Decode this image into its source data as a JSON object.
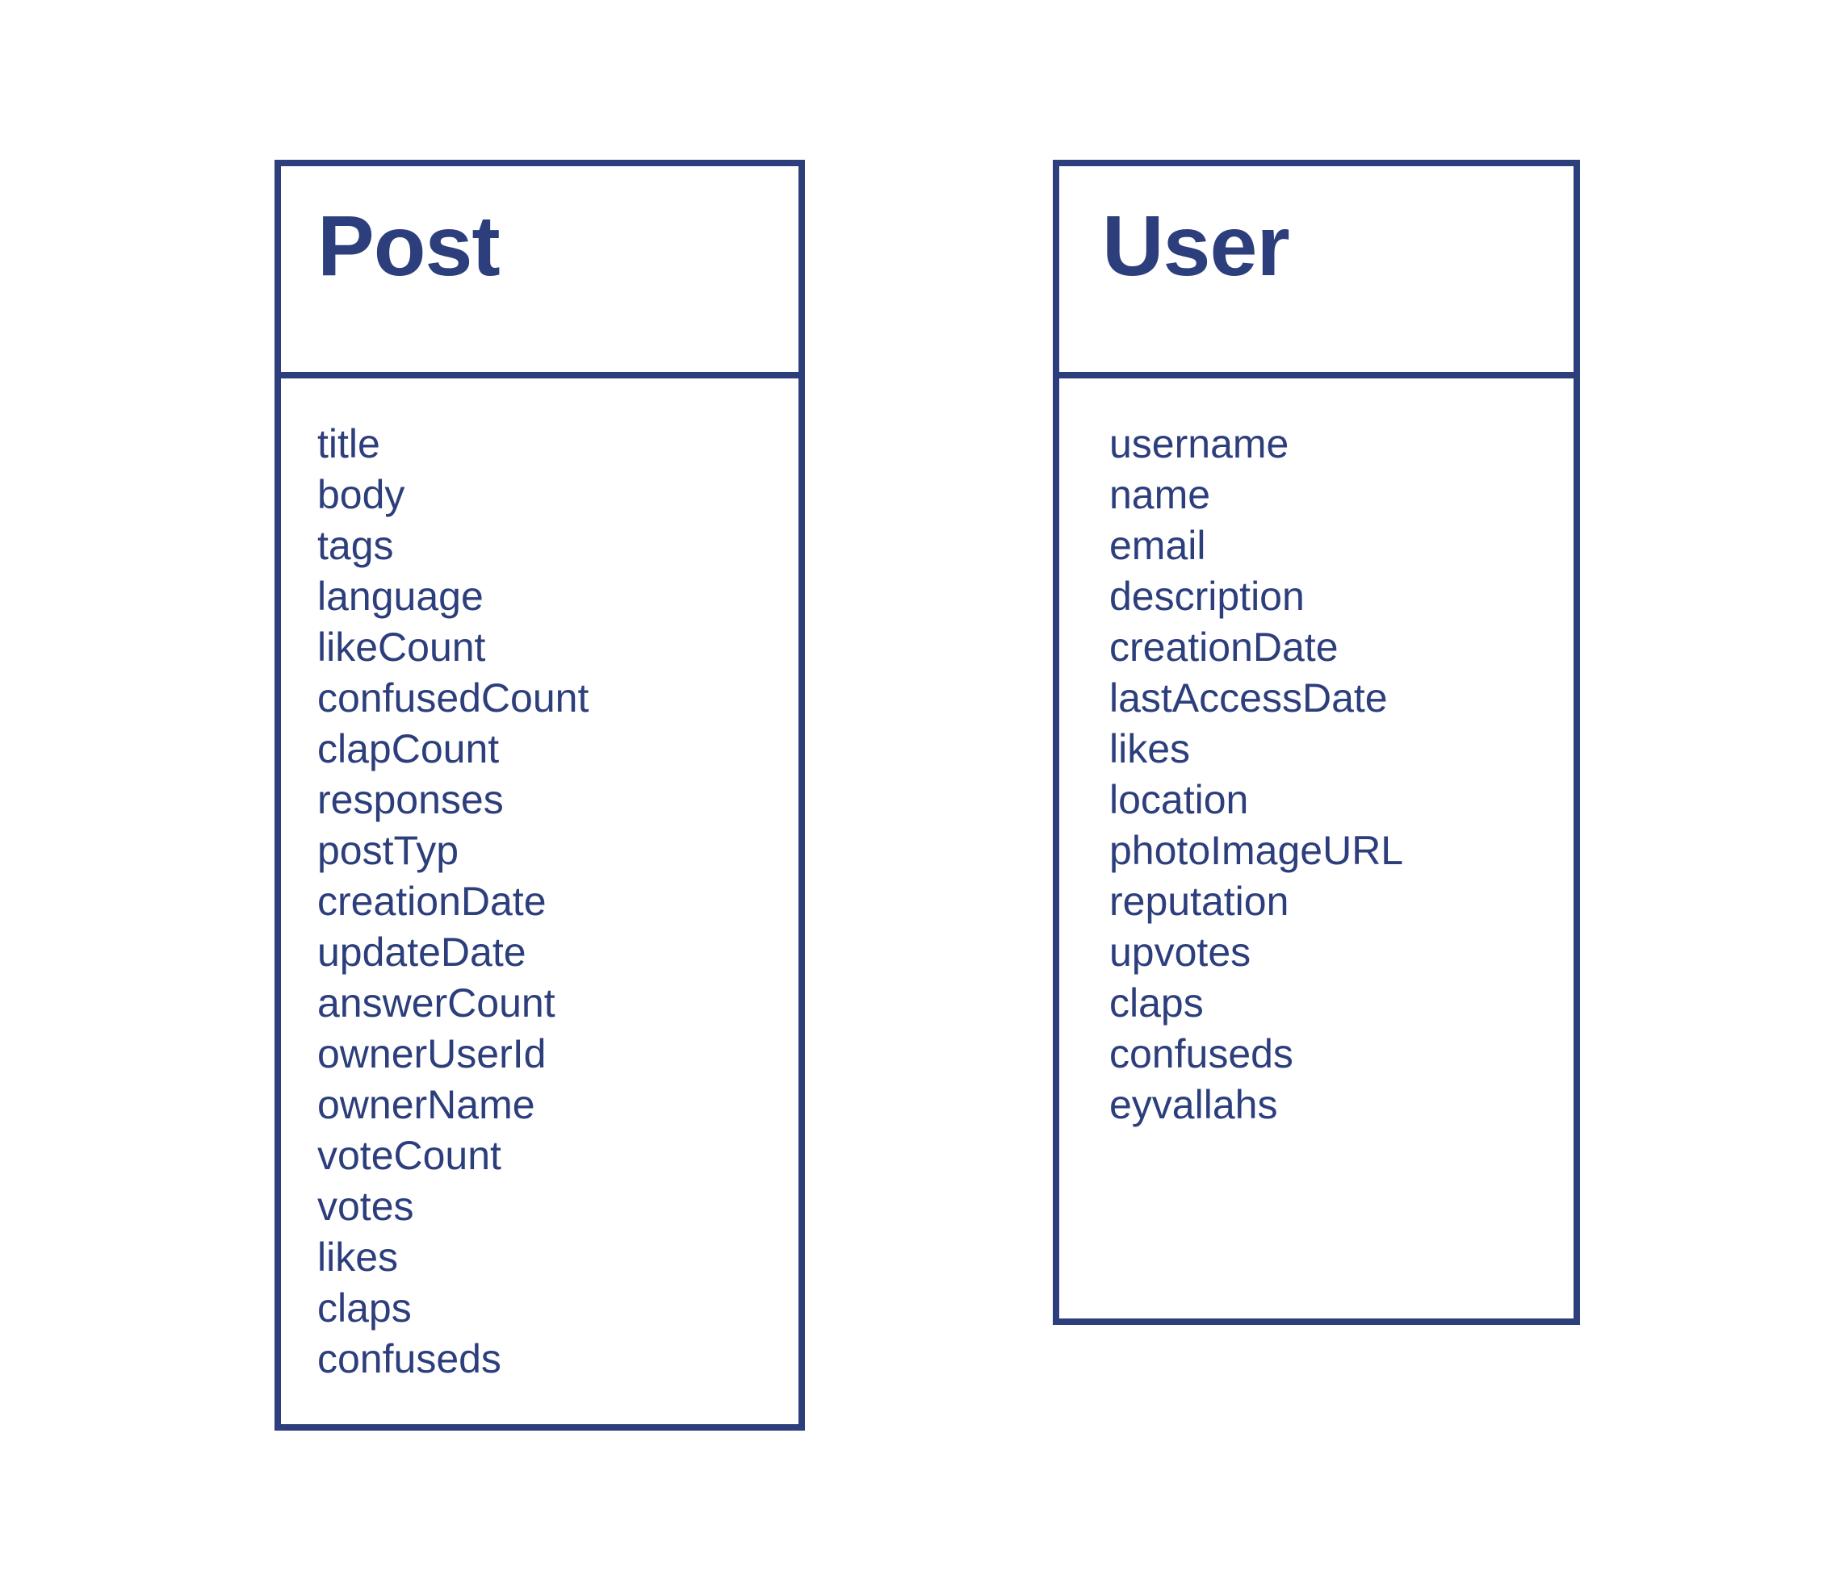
{
  "colors": {
    "stroke": "#2c3e7b",
    "text": "#2c3e7b",
    "background": "#ffffff"
  },
  "classes": [
    {
      "name": "Post",
      "attributes": [
        "title",
        "body",
        "tags",
        "language",
        "likeCount",
        "confusedCount",
        "clapCount",
        "responses",
        "postTyp",
        "creationDate",
        "updateDate",
        "answerCount",
        "ownerUserId",
        "ownerName",
        "voteCount",
        "votes",
        "likes",
        "claps",
        "confuseds"
      ]
    },
    {
      "name": "User",
      "attributes": [
        "username",
        "name",
        "email",
        "description",
        "creationDate",
        "lastAccessDate",
        "likes",
        "location",
        "photoImageURL",
        "reputation",
        "upvotes",
        "claps",
        "confuseds",
        "eyvallahs"
      ]
    }
  ]
}
